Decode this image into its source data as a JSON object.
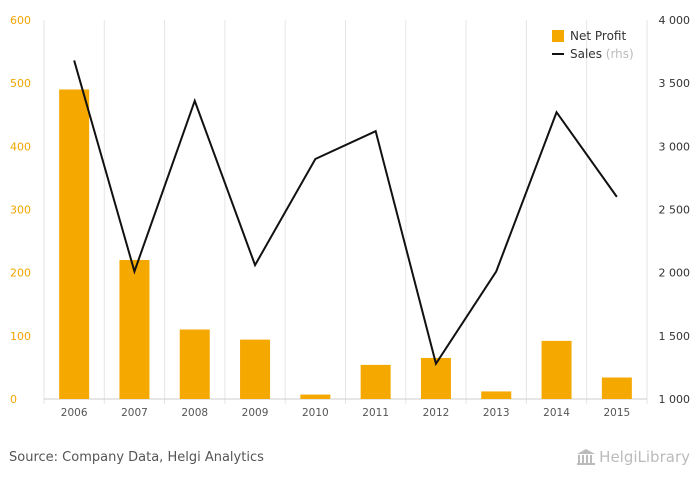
{
  "chart_data": {
    "type": "bar",
    "categories": [
      "2006",
      "2007",
      "2008",
      "2009",
      "2010",
      "2011",
      "2012",
      "2013",
      "2014",
      "2015"
    ],
    "series": [
      {
        "name": "Net Profit",
        "type": "bar",
        "axis": "left",
        "color": "#f5a800",
        "values": [
          490,
          220,
          110,
          94,
          7,
          54,
          65,
          12,
          92,
          34
        ]
      },
      {
        "name": "Sales",
        "legend_suffix": "(rhs)",
        "type": "line",
        "axis": "right",
        "color": "#111111",
        "values": [
          3680,
          2010,
          3360,
          2060,
          2900,
          3120,
          1280,
          2010,
          3270,
          2600
        ]
      }
    ],
    "y_left": {
      "ylim": [
        0,
        600
      ],
      "ticks": [
        "0",
        "100",
        "200",
        "300",
        "400",
        "500",
        "600"
      ],
      "tick_values": [
        0,
        100,
        200,
        300,
        400,
        500,
        600
      ]
    },
    "y_right": {
      "ylim": [
        1000,
        4000
      ],
      "ticks": [
        "1 000",
        "1 500",
        "2 000",
        "2 500",
        "3 000",
        "3 500",
        "4 000"
      ],
      "tick_values": [
        1000,
        1500,
        2000,
        2500,
        3000,
        3500,
        4000
      ]
    },
    "grid": "vertical",
    "legend_position": "top-right"
  },
  "footer": {
    "source": "Source: Company Data, Helgi Analytics",
    "logo_text": "HelgiLibrary"
  }
}
